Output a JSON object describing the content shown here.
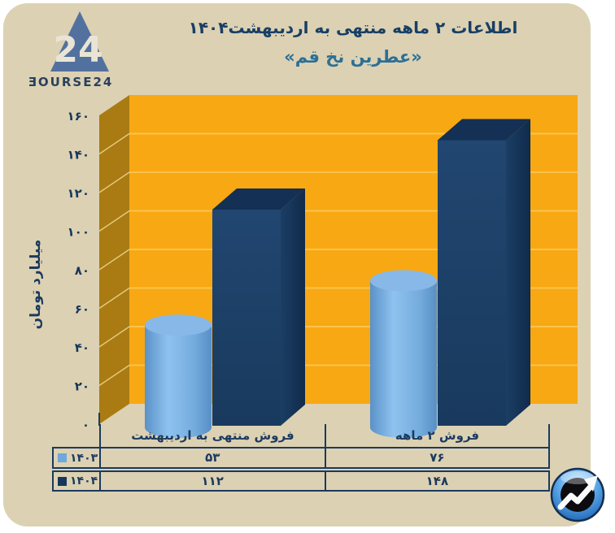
{
  "brand": {
    "triangle_number": "24",
    "wordmark": "ƎOURSE24"
  },
  "header": {
    "title": "اطلاعات ۲ ماهه منتهی به اردیبهشت۱۴۰۴",
    "subtitle": "«عطرین نخ قم»"
  },
  "chart_data": {
    "type": "bar",
    "style": "3d",
    "title": "اطلاعات ۲ ماهه منتهی به اردیبهشت۱۴۰۴ «عطرین نخ قم»",
    "categories": [
      "فروش منتهی به اردیبهشت",
      "فروش ۲ ماهه"
    ],
    "series": [
      {
        "name": "۱۴۰۳",
        "shape": "cylinder",
        "values": [
          53,
          76
        ],
        "values_display": [
          "۵۳",
          "۷۶"
        ],
        "color": "#6fa8dc"
      },
      {
        "name": "۱۴۰۴",
        "shape": "box",
        "values": [
          112,
          148
        ],
        "values_display": [
          "۱۱۲",
          "۱۴۸"
        ],
        "color": "#1b3c62"
      }
    ],
    "ylabel": "میلیارد تومان",
    "ylim": [
      0,
      160
    ],
    "ytick_step": 20,
    "yticks_display": [
      "۰",
      "۲۰",
      "۴۰",
      "۶۰",
      "۸۰",
      "۱۰۰",
      "۱۲۰",
      "۱۴۰",
      "۱۶۰"
    ],
    "grid": true,
    "legend_position": "table-left",
    "colors": {
      "back_wall": "#f7a813",
      "side_wall": "#a97b12",
      "gridline": "#fcc34c",
      "grid_side": "#e5c87f",
      "tick_text": "#17375c"
    }
  },
  "table": {
    "columns": [
      "فروش منتهی به اردیبهشت",
      "فروش ۲ ماهه"
    ],
    "rows": [
      {
        "year": "۱۴۰۳",
        "marker_color": "#6fa8dc",
        "values": [
          "۵۳",
          "۷۶"
        ]
      },
      {
        "year": "۱۴۰۴",
        "marker_color": "#17365c",
        "values": [
          "۱۱۲",
          "۱۴۸"
        ]
      }
    ]
  }
}
